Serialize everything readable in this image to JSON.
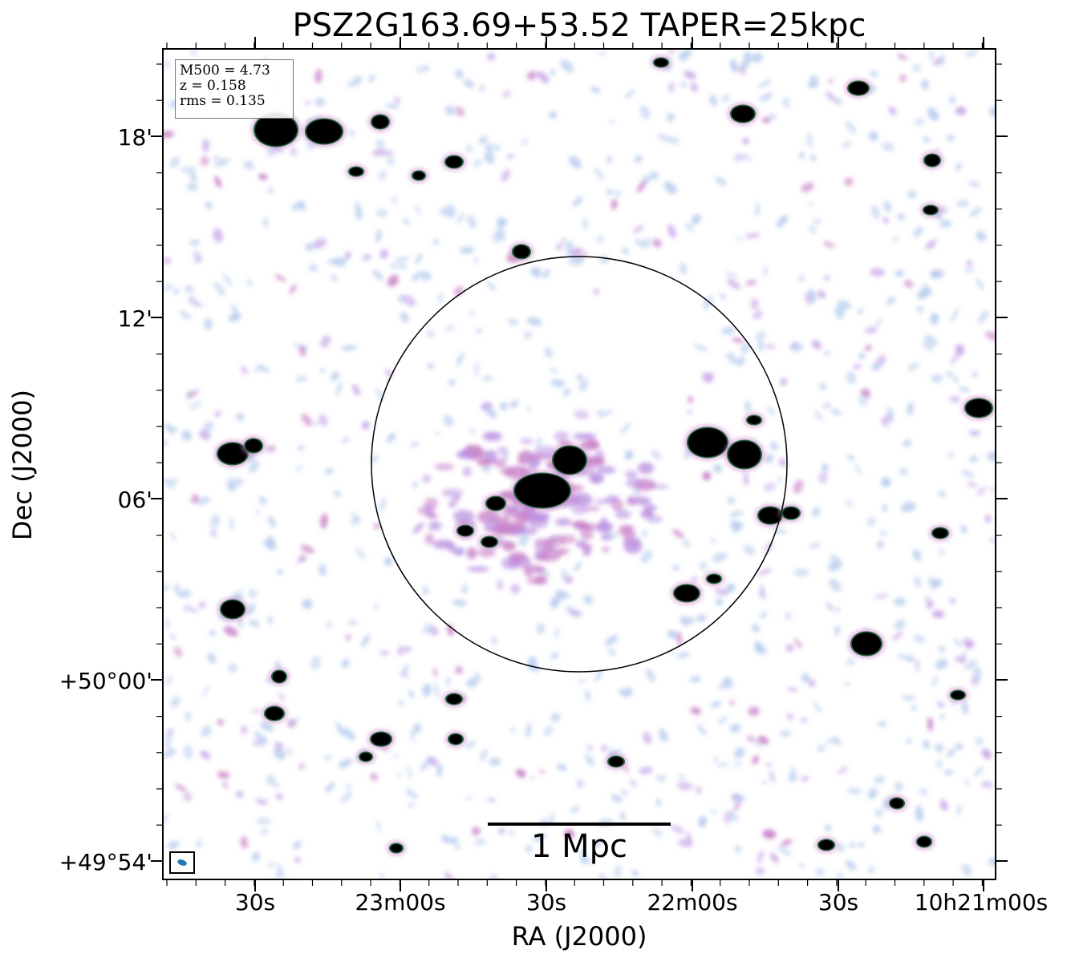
{
  "title": "PSZ2G163.69+53.52 TAPER=25kpc",
  "info": {
    "m500": "M500 = 4.73",
    "z": "z = 0.158",
    "rms": "rms = 0.135"
  },
  "axes": {
    "xlabel": "RA (J2000)",
    "ylabel": "Dec (J2000)",
    "x_ticks": [
      "30s",
      "23m00s",
      "30s",
      "22m00s",
      "30s",
      "10h21m00s"
    ],
    "y_ticks": [
      "18'",
      "12'",
      "06'",
      "+50°00'",
      "+49°54'"
    ]
  },
  "scale_bar": {
    "label": "1 Mpc"
  },
  "colors": {
    "faint": "#b8cdee",
    "mid": "#c77fc6",
    "bright": "#1f5f3a",
    "core": "#000000",
    "circle": "#000000",
    "beam": "#1f77b4"
  }
}
